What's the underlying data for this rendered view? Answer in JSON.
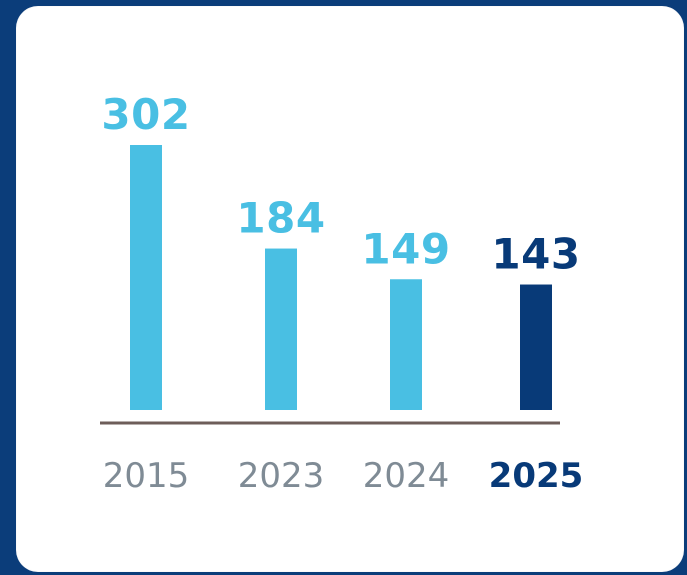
{
  "chart_data": {
    "type": "bar",
    "categories": [
      "2015",
      "2023",
      "2024",
      "2025"
    ],
    "values": [
      302,
      184,
      149,
      143
    ],
    "highlight_index": 3,
    "colors": {
      "bar": "#49bfe3",
      "highlight_bar": "#083a78",
      "value_label": "#49bfe3",
      "highlight_label": "#083a78",
      "year_label": "#7f8b95",
      "highlight_year_label": "#083a78",
      "axis": "#6d5d59"
    },
    "title": "",
    "xlabel": "",
    "ylabel": "",
    "ylim": [
      0,
      302
    ],
    "grid": false,
    "legend": "none"
  }
}
